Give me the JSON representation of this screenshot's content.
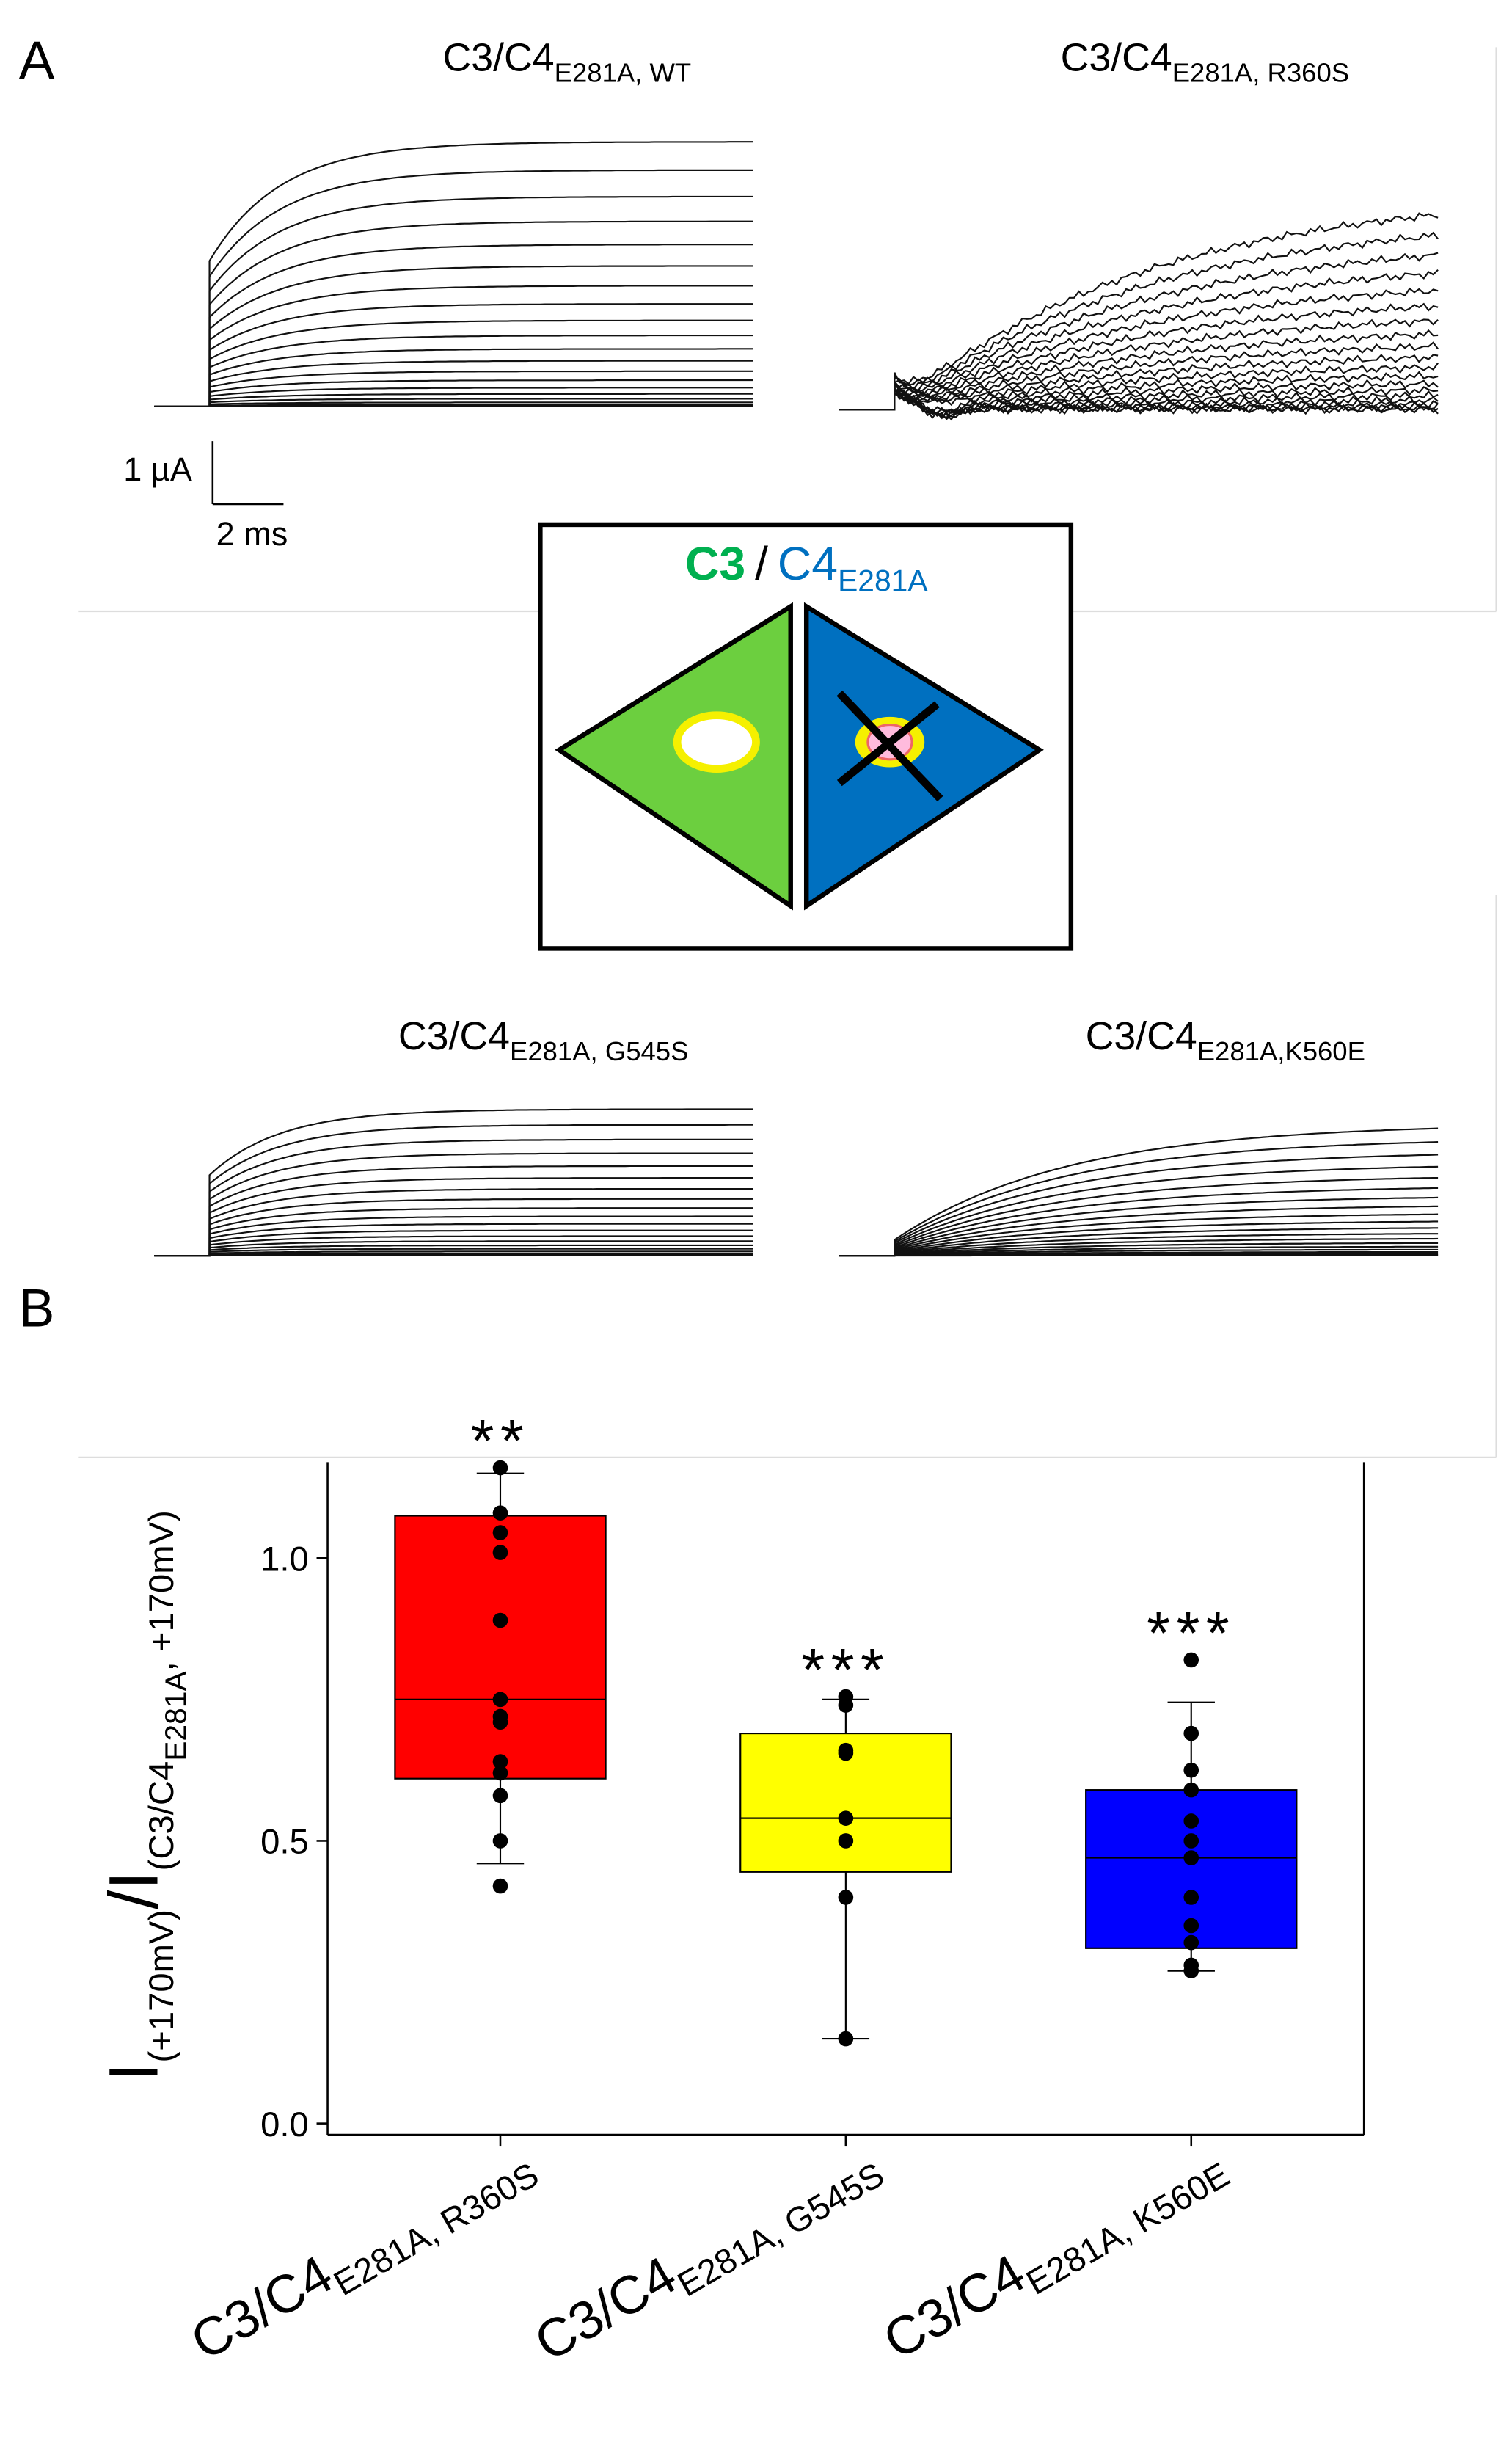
{
  "figure": {
    "panel_a": "A",
    "panel_b": "B",
    "traces": [
      {
        "title": "C3/C4",
        "sub": "E281A, WT"
      },
      {
        "title": "C3/C4",
        "sub": "E281A, R360S"
      },
      {
        "title": "C3/C4",
        "sub": "E281A, G545S"
      },
      {
        "title": "C3/C4",
        "sub": "E281A,K560E"
      }
    ],
    "scale_current": "1 µA",
    "scale_time": "2 ms",
    "diagram": {
      "c3": "C3",
      "slash": "/",
      "c4": "C4",
      "c4_sub": "E281A"
    }
  },
  "chart_data": {
    "type": "box",
    "ylabel": [
      "I",
      "(+170mV)",
      "/I",
      "(C3/C4",
      "E281A",
      ",  +170mV)"
    ],
    "categories": [
      {
        "base": "C3/C4",
        "sub": "E281A, R360S"
      },
      {
        "base": "C3/C4",
        "sub": "E281A, G545S"
      },
      {
        "base": "C3/C4",
        "sub": "E281A, K560E"
      }
    ],
    "boxes": [
      {
        "color": "#ff0000",
        "q1": 0.61,
        "median": 0.75,
        "q3": 1.075,
        "whisker_low": 0.46,
        "whisker_high": 1.15,
        "points": [
          1.16,
          1.08,
          1.045,
          1.01,
          0.89,
          0.75,
          0.72,
          0.71,
          0.64,
          0.62,
          0.58,
          0.5,
          0.42
        ]
      },
      {
        "color": "#ffff00",
        "q1": 0.445,
        "median": 0.54,
        "q3": 0.69,
        "whisker_low": 0.15,
        "whisker_high": 0.75,
        "points": [
          0.755,
          0.74,
          0.66,
          0.655,
          0.54,
          0.5,
          0.4,
          0.15
        ]
      },
      {
        "color": "#0000ff",
        "q1": 0.31,
        "median": 0.47,
        "q3": 0.59,
        "whisker_low": 0.27,
        "whisker_high": 0.745,
        "points": [
          0.82,
          0.69,
          0.625,
          0.59,
          0.535,
          0.5,
          0.47,
          0.4,
          0.35,
          0.32,
          0.28,
          0.27
        ]
      }
    ],
    "annotations": [
      "**",
      "***",
      "***"
    ],
    "ylim": [
      -0.02,
      1.17
    ],
    "yticks": [
      {
        "value": 0,
        "label": "0.0"
      },
      0.5,
      {
        "value": 1,
        "label": "1.0"
      }
    ]
  }
}
